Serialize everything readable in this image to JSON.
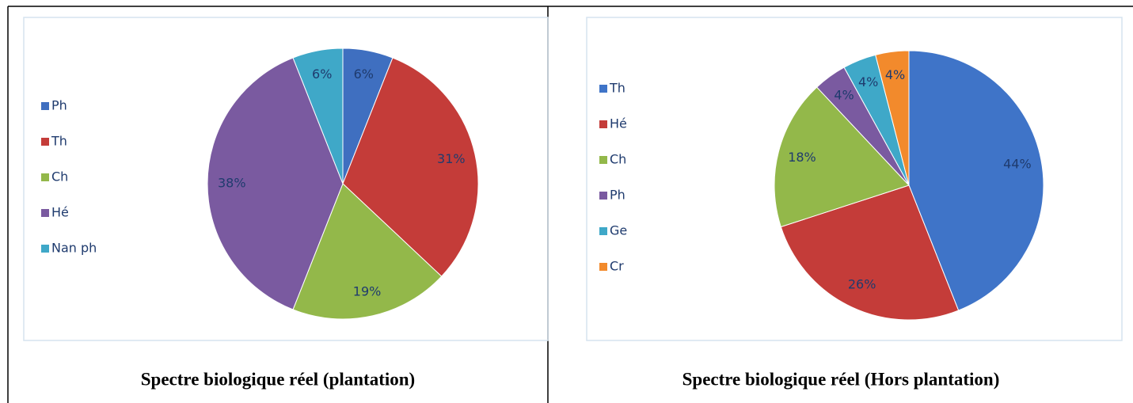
{
  "chart_data": [
    {
      "type": "pie",
      "title": "Spectre biologique réel (plantation)",
      "categories": [
        "Ph",
        "Th",
        "Ch",
        "Hé",
        "Nan ph"
      ],
      "values": [
        6,
        31,
        19,
        38,
        6
      ],
      "value_labels": [
        "6%",
        "31%",
        "19%",
        "38%",
        "6%"
      ],
      "colors": [
        "#3f6fc0",
        "#c43c39",
        "#93b84a",
        "#7a5aa0",
        "#3fa8c8"
      ],
      "legend": "left"
    },
    {
      "type": "pie",
      "title": "Spectre biologique réel (Hors plantation)",
      "categories": [
        "Th",
        "Hé",
        "Ch",
        "Ph",
        "Ge",
        "Cr"
      ],
      "values": [
        44,
        26,
        18,
        4,
        4,
        4
      ],
      "value_labels": [
        "44%",
        "26%",
        "18%",
        "4%",
        "4%",
        "4%"
      ],
      "colors": [
        "#3f74c8",
        "#c43c39",
        "#93b84a",
        "#7a5aa0",
        "#3fa8c8",
        "#f28a2c"
      ],
      "legend": "left"
    }
  ]
}
